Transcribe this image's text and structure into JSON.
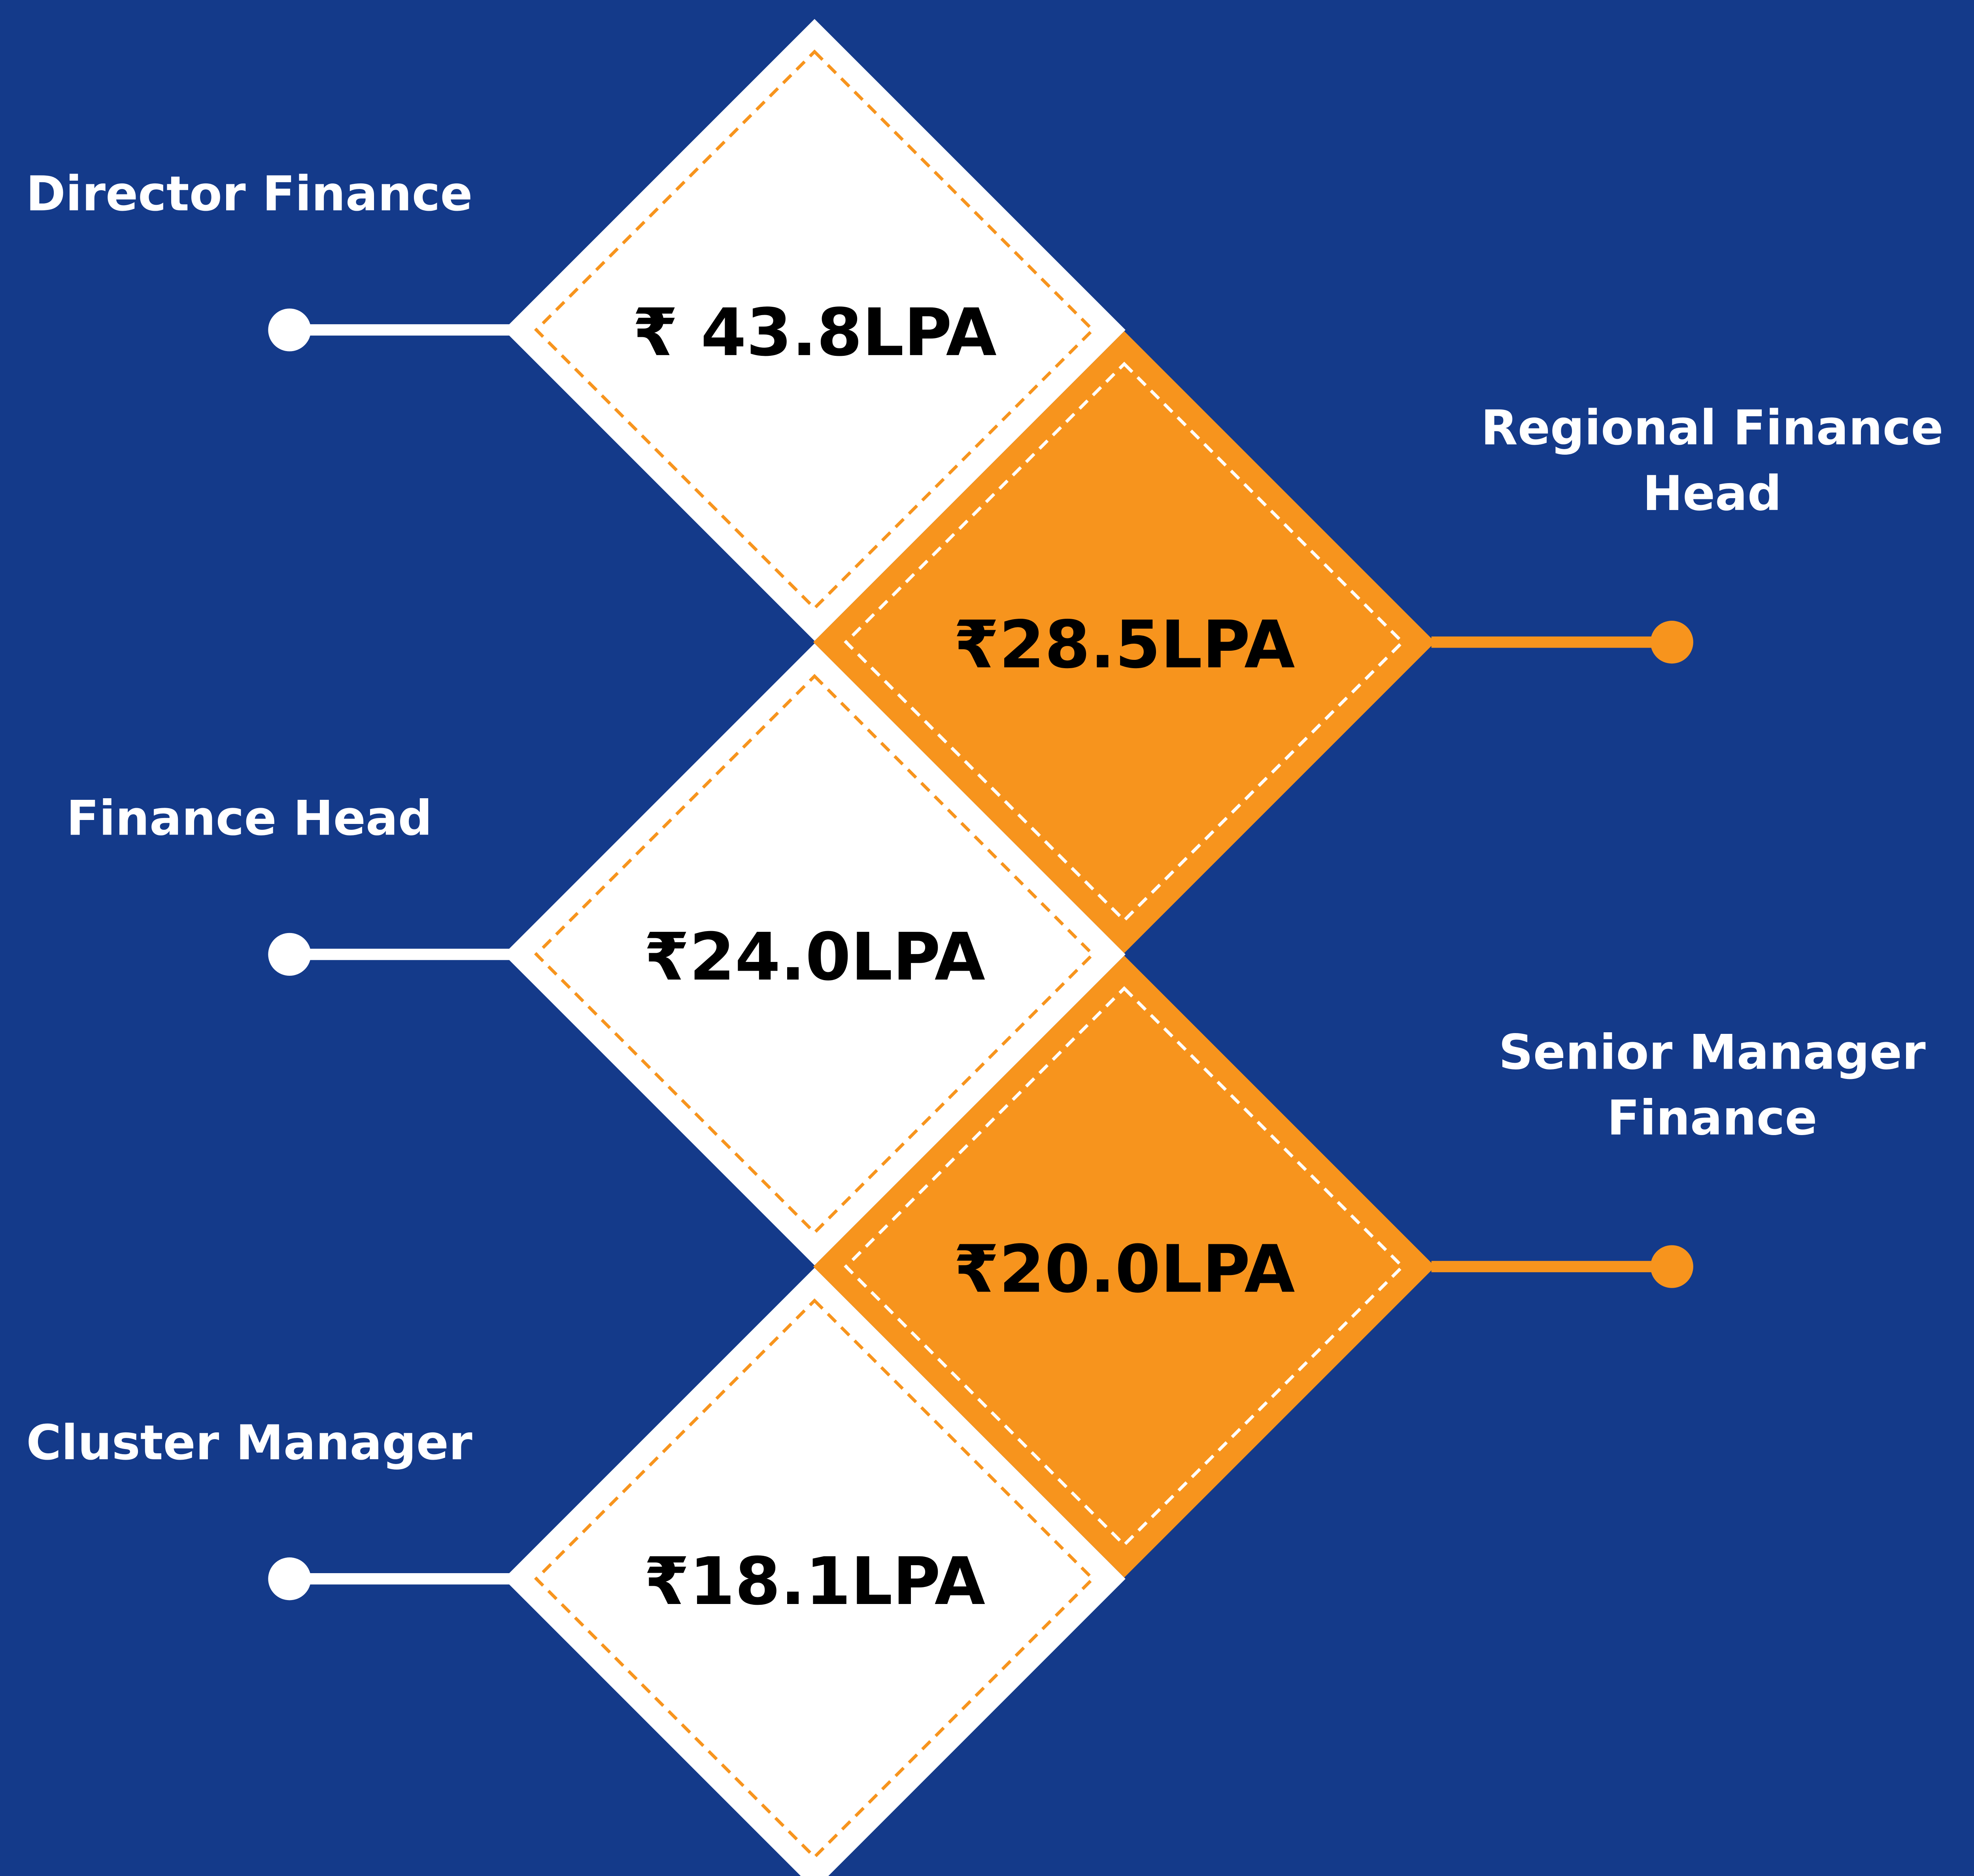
{
  "nodes": [
    {
      "label": [
        "Director Finance"
      ],
      "value": "₹ 43.8LPA",
      "style": "white",
      "side": "left"
    },
    {
      "label": [
        "Regional Finance",
        "Head"
      ],
      "value": "₹28.5LPA",
      "style": "orange",
      "side": "right"
    },
    {
      "label": [
        "Finance Head"
      ],
      "value": "₹24.0LPA",
      "style": "white",
      "side": "left"
    },
    {
      "label": [
        "Senior Manager",
        "Finance"
      ],
      "value": "₹20.0LPA",
      "style": "orange",
      "side": "right"
    },
    {
      "label": [
        "Cluster Manager"
      ],
      "value": "₹18.1LPA",
      "style": "white",
      "side": "left"
    }
  ]
}
